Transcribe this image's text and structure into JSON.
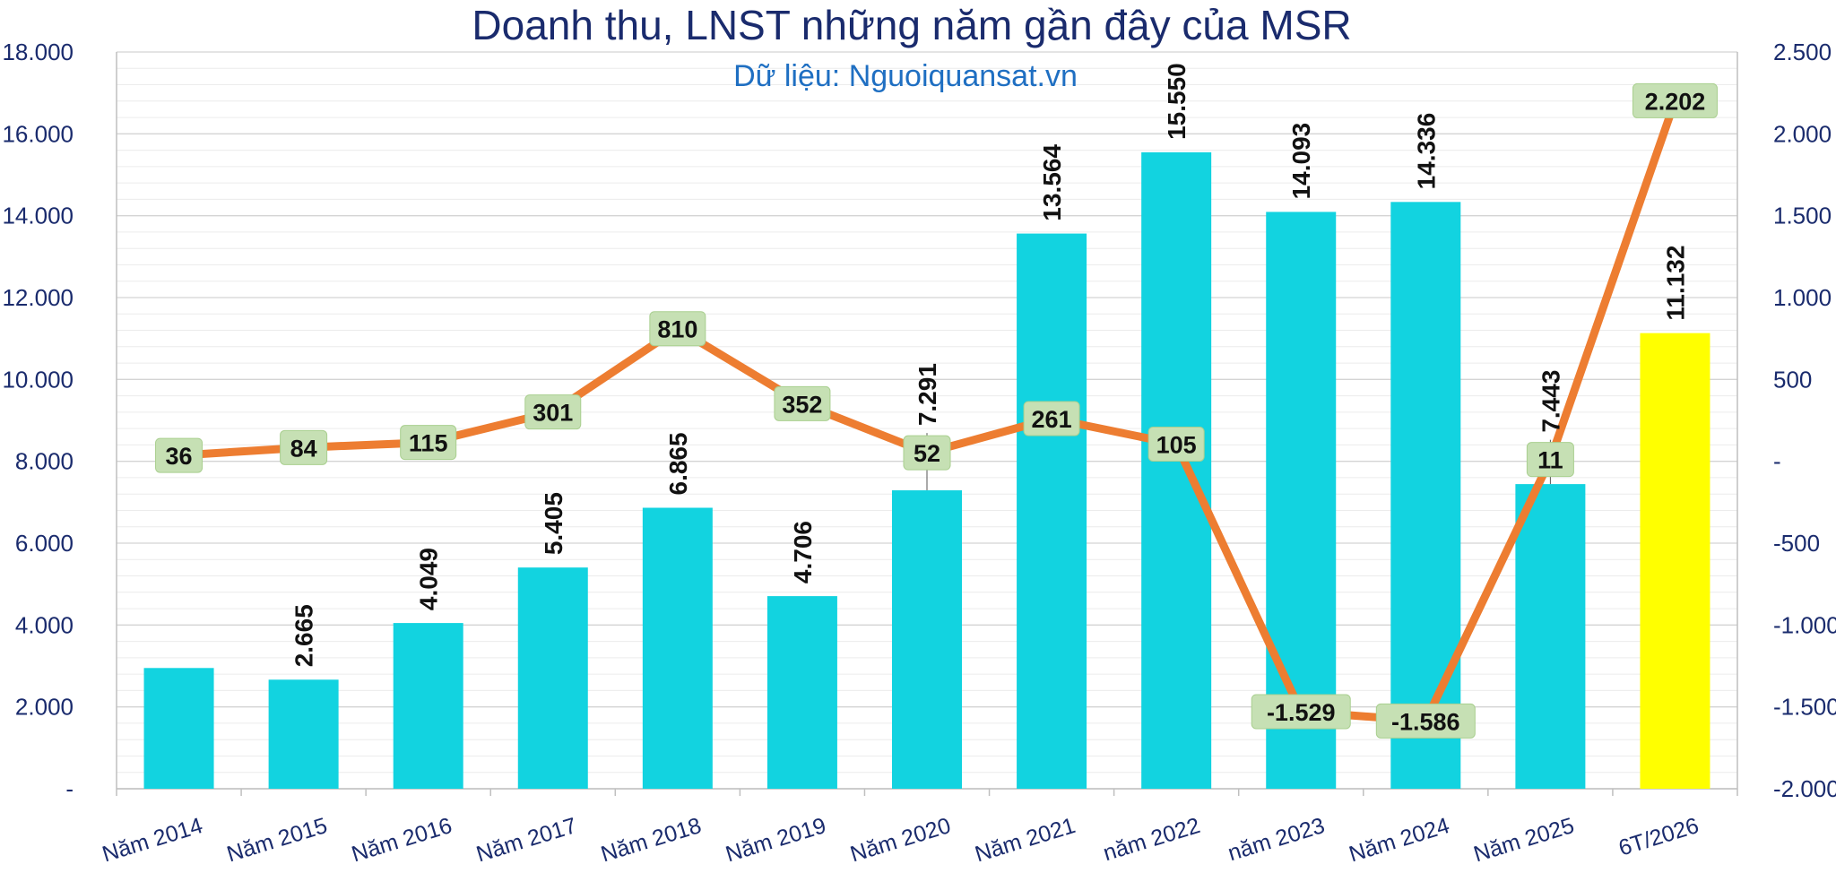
{
  "chart_data": {
    "type": "bar",
    "title": "Doanh thu, LNST những năm gần đây của MSR",
    "subtitle": "Dữ liệu: Nguoiquansat.vn",
    "categories": [
      "Năm 2014",
      "Năm 2015",
      "Năm 2016",
      "Năm 2017",
      "Năm 2018",
      "Năm 2019",
      "Năm 2020",
      "Năm 2021",
      "năm 2022",
      "năm 2023",
      "Năm 2024",
      "Năm 2025",
      "6T/2026"
    ],
    "series": [
      {
        "kind": "bar",
        "axis": "left",
        "values": [
          2950,
          2665,
          4049,
          5405,
          6865,
          4706,
          7291,
          13564,
          15550,
          14093,
          14336,
          7443,
          11132
        ],
        "labels": [
          "",
          "2.665",
          "4.049",
          "5.405",
          "6.865",
          "4.706",
          "7.291",
          "13.564",
          "15.550",
          "14.093",
          "14.336",
          "7.443",
          "11.132"
        ],
        "color": "#12d3e0",
        "highlight_color": "#ffff00",
        "highlight_index": 12
      },
      {
        "kind": "line",
        "axis": "right",
        "values": [
          36,
          84,
          115,
          301,
          810,
          352,
          52,
          261,
          105,
          -1529,
          -1586,
          11,
          2202
        ],
        "labels": [
          "36",
          "84",
          "115",
          "301",
          "810",
          "352",
          "52",
          "261",
          "105",
          "-1.529",
          "-1.586",
          "11",
          "2.202"
        ],
        "color": "#ed7d31",
        "label_box_color": "#c6e0b4"
      }
    ],
    "y_left": {
      "range": [
        0,
        18000
      ],
      "ticks": [
        0,
        2000,
        4000,
        6000,
        8000,
        10000,
        12000,
        14000,
        16000,
        18000
      ],
      "tick_labels": [
        "-",
        "2.000",
        "4.000",
        "6.000",
        "8.000",
        "10.000",
        "12.000",
        "14.000",
        "16.000",
        "18.000"
      ]
    },
    "y_right": {
      "range": [
        -2000,
        2500
      ],
      "ticks": [
        -2000,
        -1500,
        -1000,
        -500,
        0,
        500,
        1000,
        1500,
        2000,
        2500
      ],
      "tick_labels": [
        "-2.000",
        "-1.500",
        "-1.000",
        "-500",
        "-",
        "500",
        "1.000",
        "1.500",
        "2.000",
        "2.500"
      ]
    },
    "grid": true,
    "legend": "none"
  }
}
